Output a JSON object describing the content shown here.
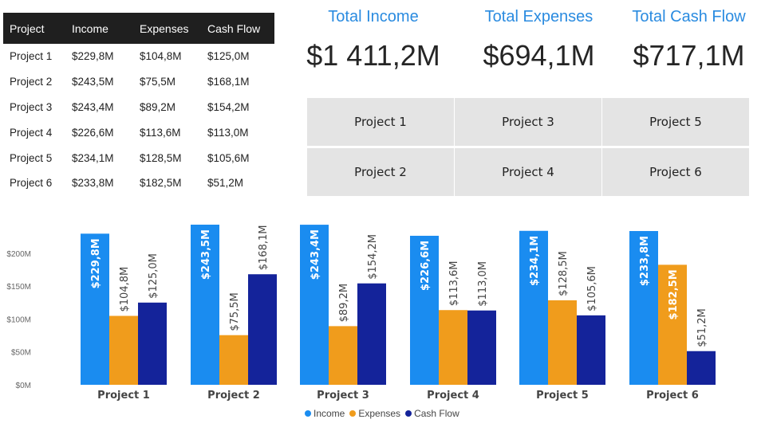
{
  "table": {
    "headers": [
      "Project",
      "Income",
      "Expenses",
      "Cash Flow"
    ],
    "rows": [
      [
        "Project 1",
        "$229,8M",
        "$104,8M",
        "$125,0M"
      ],
      [
        "Project 2",
        "$243,5M",
        "$75,5M",
        "$168,1M"
      ],
      [
        "Project 3",
        "$243,4M",
        "$89,2M",
        "$154,2M"
      ],
      [
        "Project 4",
        "$226,6M",
        "$113,6M",
        "$113,0M"
      ],
      [
        "Project 5",
        "$234,1M",
        "$128,5M",
        "$105,6M"
      ],
      [
        "Project 6",
        "$233,8M",
        "$182,5M",
        "$51,2M"
      ]
    ]
  },
  "kpis": [
    {
      "title": "Total Income",
      "value": "$1 411,2M"
    },
    {
      "title": "Total Expenses",
      "value": "$694,1M"
    },
    {
      "title": "Total Cash Flow",
      "value": "$717,1M"
    }
  ],
  "slicer": {
    "buttons": [
      "Project 1",
      "Project 3",
      "Project 5",
      "Project 2",
      "Project 4",
      "Project 6"
    ]
  },
  "colors": {
    "income": "#1a8cf0",
    "expenses": "#f09c1c",
    "cashflow": "#14239a",
    "header_bg": "#1f1f1f",
    "kpi_title": "#2a8be0"
  },
  "chart_data": {
    "type": "bar",
    "categories": [
      "Project 1",
      "Project 2",
      "Project 3",
      "Project 4",
      "Project 5",
      "Project 6"
    ],
    "series": [
      {
        "name": "Income",
        "values": [
          229.8,
          243.5,
          243.4,
          226.6,
          234.1,
          233.8
        ],
        "labels": [
          "$229,8M",
          "$243,5M",
          "$243,4M",
          "$226,6M",
          "$234,1M",
          "$233,8M"
        ]
      },
      {
        "name": "Expenses",
        "values": [
          104.8,
          75.5,
          89.2,
          113.6,
          128.5,
          182.5
        ],
        "labels": [
          "$104,8M",
          "$75,5M",
          "$89,2M",
          "$113,6M",
          "$128,5M",
          "$182,5M"
        ]
      },
      {
        "name": "Cash Flow",
        "values": [
          125.0,
          168.1,
          154.2,
          113.0,
          105.6,
          51.2
        ],
        "labels": [
          "$125,0M",
          "$168,1M",
          "$154,2M",
          "$113,0M",
          "$105,6M",
          "$51,2M"
        ]
      }
    ],
    "yticks": [
      "$0M",
      "$50M",
      "$100M",
      "$150M",
      "$200M"
    ],
    "ytick_values": [
      0,
      50,
      100,
      150,
      200
    ],
    "ylim": [
      0,
      243.5
    ],
    "grid": false,
    "legend": "bottom-center"
  }
}
